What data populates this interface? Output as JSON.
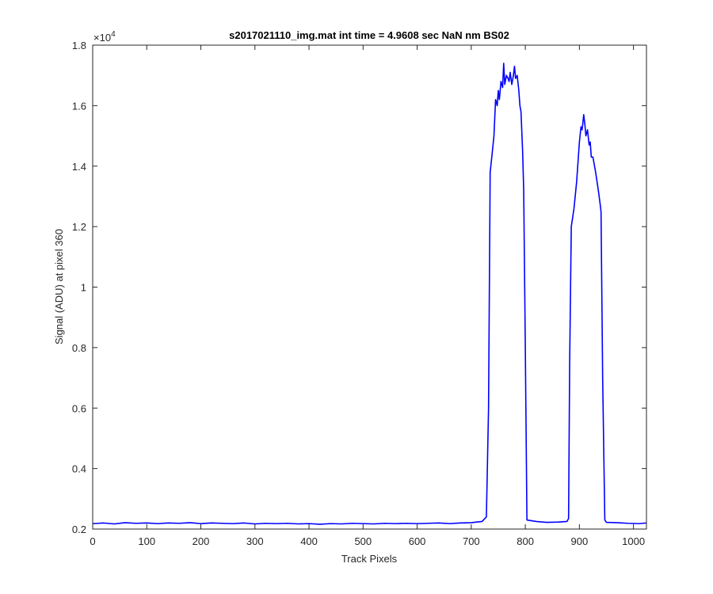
{
  "chart_data": {
    "type": "line",
    "title": "s2017021110_img.mat int time = 4.9608 sec  NaN nm BS02",
    "xlabel": "Track Pixels",
    "ylabel": "Signal (ADU) at pixel 360",
    "y_exponent_label": "×10",
    "y_exponent_power": "4",
    "xlim": [
      0,
      1024
    ],
    "ylim": [
      2000,
      18000
    ],
    "x_ticks": [
      0,
      100,
      200,
      300,
      400,
      500,
      600,
      700,
      800,
      900,
      1000
    ],
    "x_tick_labels": [
      "0",
      "100",
      "200",
      "300",
      "400",
      "500",
      "600",
      "700",
      "800",
      "900",
      "1000"
    ],
    "y_ticks": [
      2000,
      4000,
      6000,
      8000,
      10000,
      12000,
      14000,
      16000,
      18000
    ],
    "y_tick_labels": [
      "0.2",
      "0.4",
      "0.6",
      "0.8",
      "1",
      "1.2",
      "1.4",
      "1.6",
      "1.8"
    ],
    "grid": false,
    "line_color": "#0000ff",
    "series": [
      {
        "x": [
          0,
          20,
          40,
          60,
          80,
          100,
          120,
          140,
          160,
          180,
          200,
          220,
          240,
          260,
          280,
          300,
          320,
          340,
          360,
          380,
          400,
          420,
          440,
          460,
          480,
          500,
          520,
          540,
          560,
          580,
          600,
          620,
          640,
          660,
          680,
          700,
          720,
          728,
          732,
          735,
          738,
          742,
          745,
          748,
          750,
          752,
          755,
          758,
          760,
          762,
          765,
          768,
          770,
          772,
          775,
          778,
          780,
          782,
          785,
          788,
          790,
          792,
          795,
          797,
          800,
          803,
          820,
          840,
          860,
          877,
          880,
          882,
          885,
          890,
          895,
          900,
          903,
          905,
          908,
          910,
          912,
          915,
          918,
          920,
          922,
          925,
          930,
          935,
          938,
          940,
          943,
          947,
          950,
          970,
          990,
          1010,
          1024
        ],
        "y": [
          2180,
          2200,
          2170,
          2210,
          2190,
          2200,
          2180,
          2200,
          2190,
          2210,
          2180,
          2200,
          2190,
          2180,
          2200,
          2170,
          2190,
          2180,
          2190,
          2170,
          2180,
          2160,
          2180,
          2170,
          2190,
          2180,
          2170,
          2190,
          2180,
          2190,
          2180,
          2190,
          2200,
          2180,
          2200,
          2210,
          2250,
          2400,
          6000,
          13800,
          14300,
          15000,
          16200,
          16000,
          16500,
          16200,
          16800,
          16600,
          17400,
          16700,
          17000,
          16900,
          16800,
          17100,
          16700,
          17000,
          17300,
          16900,
          17000,
          16500,
          16000,
          15800,
          14500,
          13200,
          8000,
          2300,
          2250,
          2220,
          2230,
          2250,
          2350,
          7500,
          12000,
          12600,
          13500,
          14800,
          15300,
          15200,
          15700,
          15400,
          15000,
          15200,
          14700,
          14800,
          14300,
          14300,
          13800,
          13200,
          12800,
          12500,
          7000,
          2300,
          2220,
          2210,
          2190,
          2180,
          2200
        ]
      }
    ]
  }
}
